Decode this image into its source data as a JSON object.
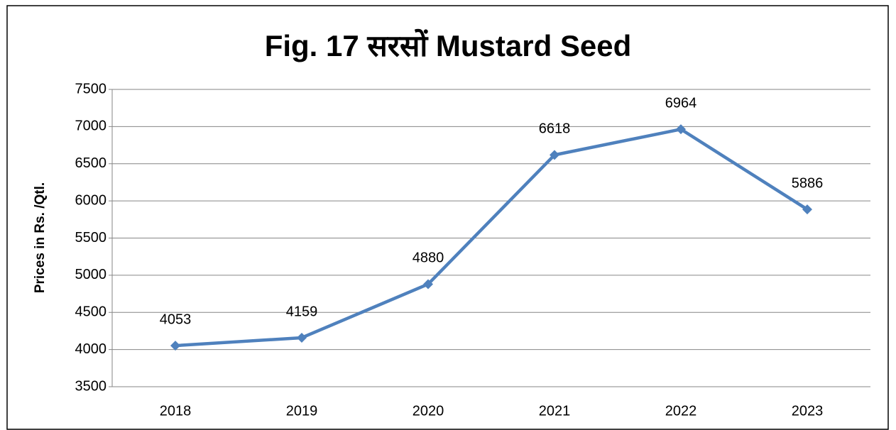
{
  "chart_data": {
    "type": "line",
    "title": "Fig. 17 सरसों Mustard Seed",
    "y_label": "Prices in Rs. /Qtl.",
    "categories": [
      "2018",
      "2019",
      "2020",
      "2021",
      "2022",
      "2023"
    ],
    "values": [
      4053,
      4159,
      4880,
      6618,
      6964,
      5886
    ],
    "color": "#4f81bd",
    "ylim": [
      3500,
      7500
    ],
    "yticks": [
      3500,
      4000,
      4500,
      5000,
      5500,
      6000,
      6500,
      7000,
      7500
    ],
    "grid": true,
    "data_labels": true
  }
}
